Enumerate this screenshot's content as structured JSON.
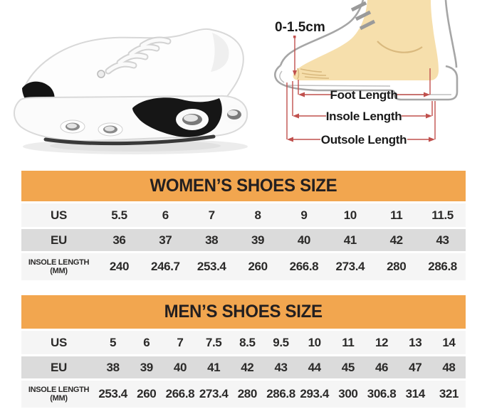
{
  "colors": {
    "header_orange": "#F2A64F",
    "row_light": "#F5F5F5",
    "row_dark": "#DBDBDB",
    "dimension_red": "#C0504D",
    "foot_skin": "#F6DFAC",
    "title_text": "#231F20"
  },
  "hero": {
    "sneaker_photo": "white-athletic-sneaker-side-view",
    "foot_diagram": {
      "toe_allowance_label": "0-1.5cm",
      "foot_length_label": "Foot Length",
      "insole_length_label": "Insole Length",
      "outsole_length_label": "Outsole Length"
    }
  },
  "womens": {
    "title": "WOMEN’S SHOES SIZE",
    "rows": [
      {
        "label": "US",
        "sublabel": "",
        "shade": "light",
        "values": [
          "5.5",
          "6",
          "7",
          "8",
          "9",
          "10",
          "11",
          "11.5"
        ]
      },
      {
        "label": "EU",
        "sublabel": "",
        "shade": "dark",
        "values": [
          "36",
          "37",
          "38",
          "39",
          "40",
          "41",
          "42",
          "43"
        ]
      },
      {
        "label": "INSOLE LENGTH",
        "sublabel": "(MM)",
        "shade": "insole",
        "values": [
          "240",
          "246.7",
          "253.4",
          "260",
          "266.8",
          "273.4",
          "280",
          "286.8"
        ]
      }
    ]
  },
  "mens": {
    "title": "MEN’S SHOES SIZE",
    "rows": [
      {
        "label": "US",
        "sublabel": "",
        "shade": "light",
        "values": [
          "5",
          "6",
          "7",
          "7.5",
          "8.5",
          "9.5",
          "10",
          "11",
          "12",
          "13",
          "14"
        ]
      },
      {
        "label": "EU",
        "sublabel": "",
        "shade": "dark",
        "values": [
          "38",
          "39",
          "40",
          "41",
          "42",
          "43",
          "44",
          "45",
          "46",
          "47",
          "48"
        ]
      },
      {
        "label": "INSOLE LENGTH",
        "sublabel": "(MM)",
        "shade": "insole",
        "values": [
          "253.4",
          "260",
          "266.8",
          "273.4",
          "280",
          "286.8",
          "293.4",
          "300",
          "306.8",
          "314",
          "321"
        ]
      }
    ]
  }
}
